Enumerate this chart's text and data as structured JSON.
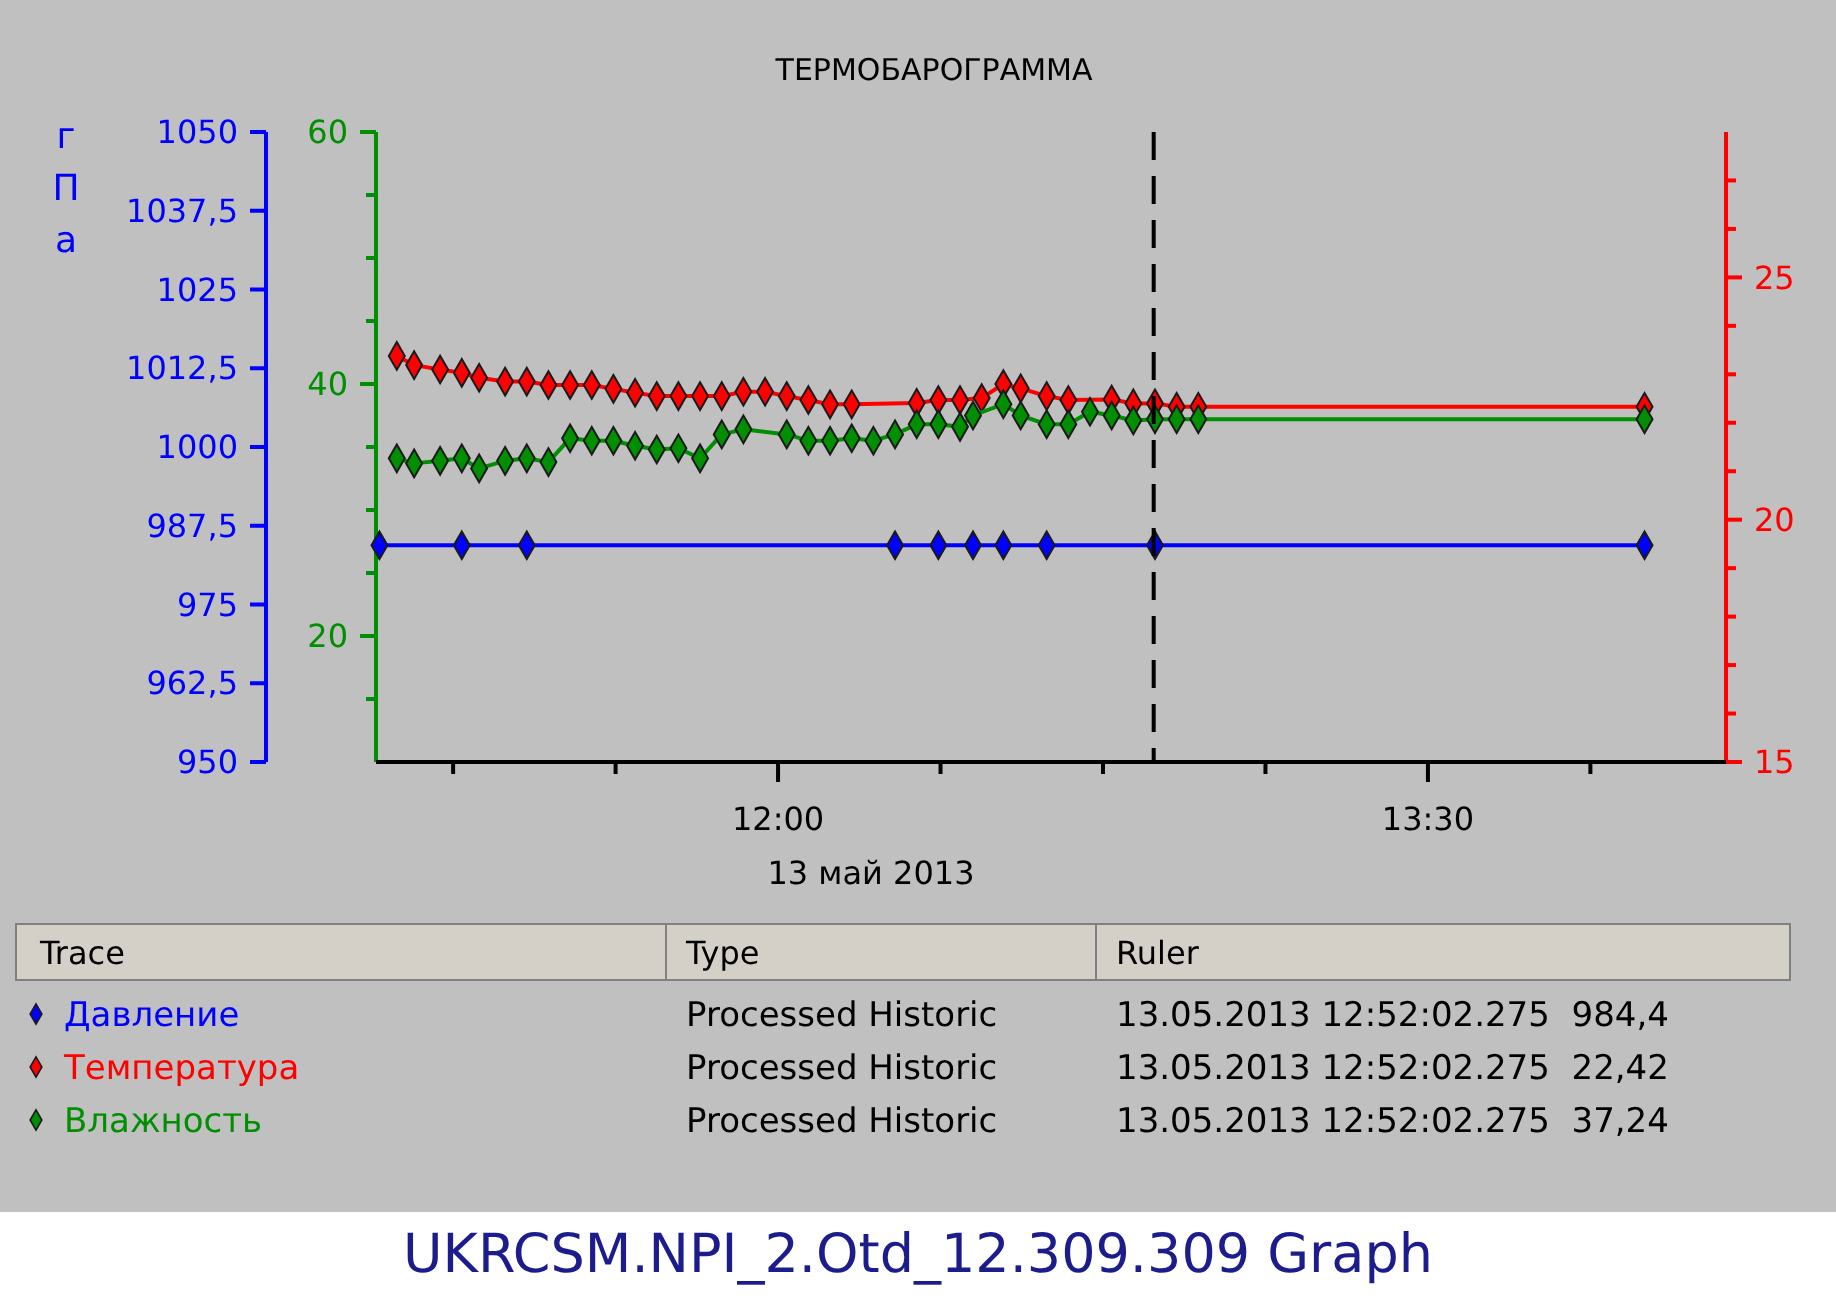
{
  "chart_data": {
    "type": "line",
    "title": "ТЕРМОБАРОГРАММА",
    "xlabel": "13 май 2013",
    "ylabel": "гПа",
    "xlim": [
      11.072,
      14.188
    ],
    "xticks": [
      {
        "value": 11.25,
        "label": null
      },
      {
        "value": 11.625,
        "label": null
      },
      {
        "value": 12,
        "label": "12:00"
      },
      {
        "value": 12.375,
        "label": null
      },
      {
        "value": 12.75,
        "label": null
      },
      {
        "value": 13.125,
        "label": null
      },
      {
        "value": 13.5,
        "label": "13:30"
      },
      {
        "value": 13.875,
        "label": null
      }
    ],
    "ylim": [
      950,
      1050
    ],
    "yticks": [
      950,
      {
        "value": 962.5,
        "label": "962,5"
      },
      975,
      {
        "value": 987.5,
        "label": "987,5"
      },
      1000,
      {
        "value": 1012.5,
        "label": "1012,5"
      },
      1025,
      {
        "value": 1037.5,
        "label": "1037,5"
      },
      1050
    ],
    "y2lim": [
      10,
      60
    ],
    "y2ticks": [
      {
        "value": 15,
        "label": null
      },
      20,
      {
        "value": 25,
        "label": null
      },
      {
        "value": 30,
        "label": null
      },
      {
        "value": 35,
        "label": null
      },
      40,
      {
        "value": 45,
        "label": null
      },
      {
        "value": 50,
        "label": null
      },
      {
        "value": 55,
        "label": null
      },
      60
    ],
    "y3lim": [
      15,
      28
    ],
    "y3ticks": [
      15,
      {
        "value": 16,
        "label": null
      },
      {
        "value": 17,
        "label": null
      },
      {
        "value": 18,
        "label": null
      },
      {
        "value": 19,
        "label": null
      },
      20,
      {
        "value": 21,
        "label": null
      },
      {
        "value": 22,
        "label": null
      },
      {
        "value": 23,
        "label": null
      },
      {
        "value": 24,
        "label": null
      },
      25,
      {
        "value": 26,
        "label": null
      },
      {
        "value": 27,
        "label": null
      }
    ],
    "marker": "diamond",
    "line_style": "solid",
    "grid": false,
    "legend": "bottom",
    "ref_lines": [
      {
        "axis": "x",
        "value": 12.867,
        "line_style": "dashed",
        "color": "#000000"
      }
    ],
    "series": [
      {
        "name": "Давление",
        "color": "#0000ff",
        "x": [
          11.08,
          11.27,
          11.42,
          12.27,
          12.37,
          12.45,
          12.52,
          12.62,
          12.87,
          14.0
        ],
        "values": [
          984.4,
          984.4,
          984.4,
          984.4,
          984.4,
          984.4,
          984.4,
          984.4,
          984.4,
          984.4
        ]
      },
      {
        "name": "Температура",
        "color": "#ff0000",
        "axis": "y3",
        "x": [
          11.12,
          11.16,
          11.22,
          11.27,
          11.31,
          11.37,
          11.42,
          11.47,
          11.52,
          11.57,
          11.62,
          11.67,
          11.72,
          11.77,
          11.82,
          11.87,
          11.92,
          11.97,
          12.02,
          12.07,
          12.12,
          12.17,
          12.32,
          12.37,
          12.42,
          12.47,
          12.52,
          12.56,
          12.62,
          12.67,
          12.77,
          12.82,
          12.87,
          12.92,
          12.97,
          14.0
        ],
        "values": [
          23.38,
          23.19,
          23.1,
          23.03,
          22.93,
          22.85,
          22.85,
          22.78,
          22.78,
          22.78,
          22.7,
          22.62,
          22.55,
          22.55,
          22.55,
          22.55,
          22.64,
          22.64,
          22.55,
          22.47,
          22.38,
          22.38,
          22.41,
          22.47,
          22.47,
          22.51,
          22.8,
          22.71,
          22.55,
          22.47,
          22.48,
          22.4,
          22.4,
          22.33,
          22.33,
          22.33
        ]
      },
      {
        "name": "Влажность",
        "color": "#008f00",
        "axis": "y2",
        "x": [
          11.12,
          11.16,
          11.22,
          11.27,
          11.31,
          11.37,
          11.42,
          11.47,
          11.52,
          11.57,
          11.62,
          11.67,
          11.72,
          11.77,
          11.82,
          11.87,
          11.92,
          12.02,
          12.07,
          12.12,
          12.17,
          12.22,
          12.27,
          12.32,
          12.37,
          12.42,
          12.45,
          12.52,
          12.56,
          12.62,
          12.67,
          12.72,
          12.77,
          12.82,
          12.87,
          12.92,
          12.97,
          14.0
        ],
        "values": [
          34.1,
          33.7,
          33.9,
          34.1,
          33.3,
          33.9,
          34.1,
          33.8,
          35.7,
          35.5,
          35.5,
          35.1,
          34.8,
          34.9,
          34.1,
          36.0,
          36.4,
          36.0,
          35.5,
          35.5,
          35.7,
          35.5,
          36.0,
          36.8,
          36.8,
          36.6,
          37.5,
          38.4,
          37.5,
          36.8,
          36.8,
          37.8,
          37.5,
          37.1,
          37.2,
          37.2,
          37.2,
          37.2
        ]
      }
    ],
    "annotations": [
      "Trace",
      "Type",
      "Ruler",
      "Processed Historic",
      "13.05.2013 12:52:02.275  984,4",
      "Processed Historic",
      "13.05.2013 12:52:02.275  22,42",
      "Processed Historic",
      "13.05.2013 12:52:02.275  37,24",
      "UKRCSM.NPI_2.Otd_12.309.309 Graph"
    ]
  }
}
